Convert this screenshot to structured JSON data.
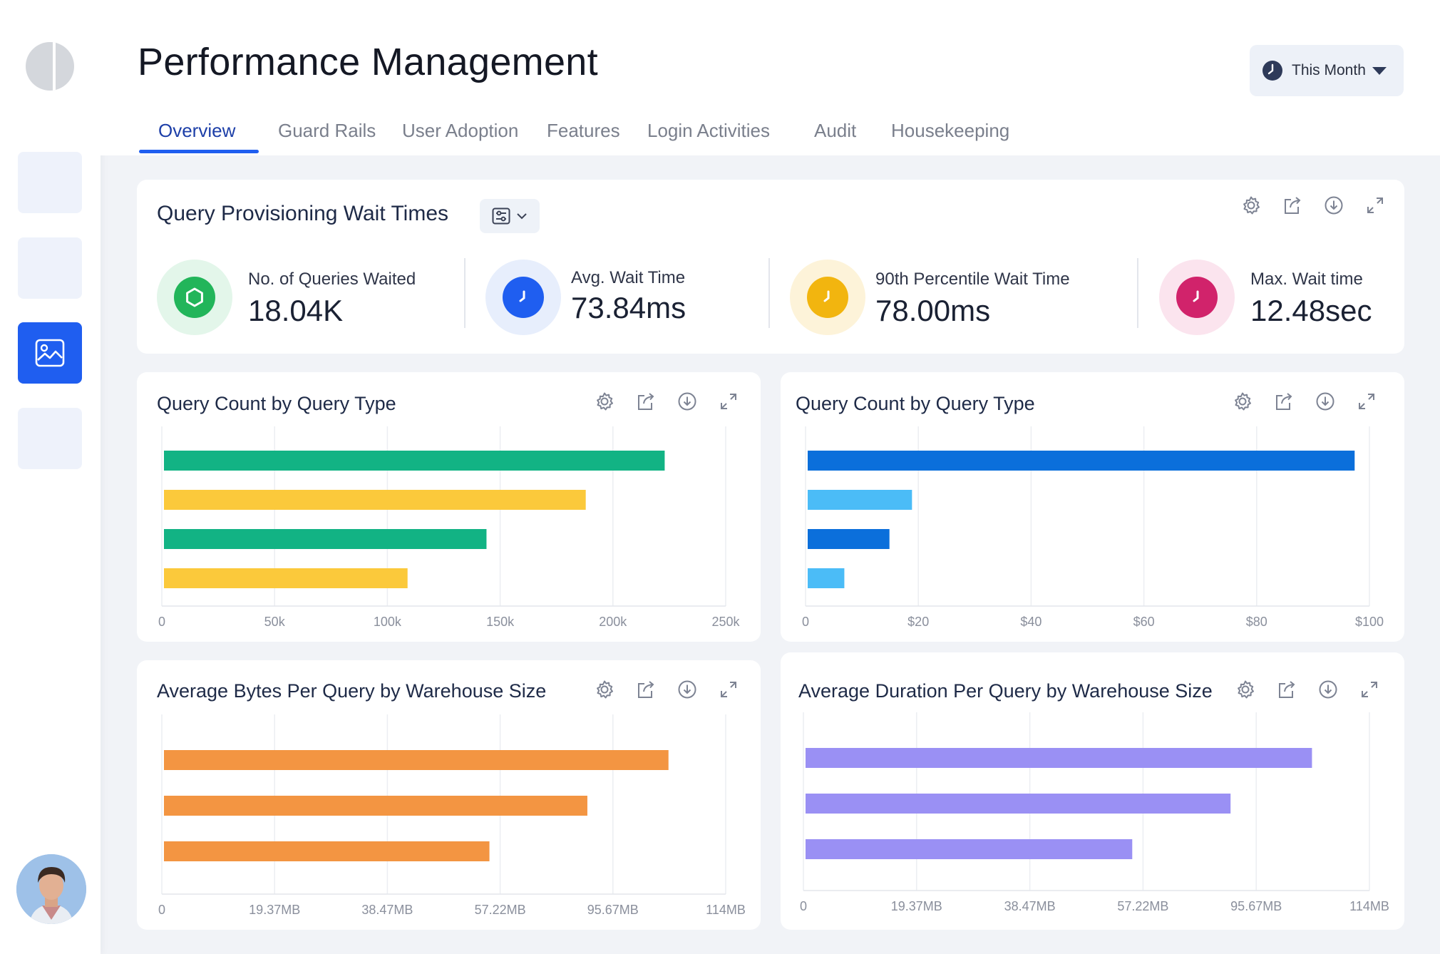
{
  "header": {
    "title": "Performance Management",
    "date_filter": "This Month"
  },
  "tabs": [
    {
      "label": "Overview",
      "active": true
    },
    {
      "label": "Guard Rails"
    },
    {
      "label": "User Adoption"
    },
    {
      "label": "Features"
    },
    {
      "label": "Login Activities"
    },
    {
      "label": "Audit"
    },
    {
      "label": "Housekeeping"
    }
  ],
  "sidebar": {
    "icons": [
      "app-logo",
      "nav-item-1",
      "nav-item-2",
      "nav-item-dashboard-image-icon",
      "nav-item-4",
      "user-avatar"
    ]
  },
  "card_tools": [
    "gear-icon",
    "share-icon",
    "download-icon",
    "expand-icon"
  ],
  "kpi_card": {
    "title": "Query Provisioning Wait Times",
    "items": [
      {
        "label": "No. of Queries Waited",
        "value": "18.04K",
        "icon": "hexagon-icon",
        "color": "#22b55a",
        "bg": "#e3f6ea"
      },
      {
        "label": "Avg. Wait Time",
        "value": "73.84ms",
        "icon": "clock-icon",
        "color": "#1f5ef0",
        "bg": "#e7eefc"
      },
      {
        "label": "90th Percentile Wait Time",
        "value": "78.00ms",
        "icon": "clock-icon",
        "color": "#f2b50f",
        "bg": "#fdf3d9"
      },
      {
        "label": "Max. Wait time",
        "value": "12.48sec",
        "icon": "clock-icon",
        "color": "#d1236b",
        "bg": "#fbe4ee"
      }
    ]
  },
  "charts": [
    {
      "title": "Query Count by Query Type",
      "chart_data": {
        "type": "bar",
        "orientation": "horizontal",
        "values": [
          222000,
          187000,
          143000,
          108000
        ],
        "colors": [
          "#12b384",
          "#fbc93b",
          "#12b384",
          "#fbc93b"
        ],
        "xlim": [
          0,
          250000
        ],
        "xticks": [
          "0",
          "50k",
          "100k",
          "150k",
          "200k",
          "250k"
        ],
        "grid": true
      }
    },
    {
      "title": "Query Count by Query Type",
      "chart_data": {
        "type": "bar",
        "orientation": "horizontal",
        "values": [
          97,
          18.5,
          14.5,
          6.5
        ],
        "colors": [
          "#0b6fdb",
          "#4bbcf7",
          "#0b6fdb",
          "#4bbcf7"
        ],
        "xlim": [
          0,
          100
        ],
        "xticks": [
          "0",
          "$20",
          "$40",
          "$60",
          "$80",
          "$100"
        ],
        "grid": true
      }
    },
    {
      "title": "Average Bytes Per Query by Warehouse Size",
      "chart_data": {
        "type": "bar",
        "orientation": "horizontal",
        "values": [
          102,
          85.6,
          65.8
        ],
        "colors": [
          "#f39542",
          "#f39542",
          "#f39542"
        ],
        "xlim": [
          0,
          114
        ],
        "xticks": [
          "0",
          "19.37MB",
          "38.47MB",
          "57.22MB",
          "95.67MB",
          "114MB"
        ],
        "grid": true
      }
    },
    {
      "title": "Average Duration Per Query by Warehouse Size",
      "chart_data": {
        "type": "bar",
        "orientation": "horizontal",
        "values": [
          102,
          85.6,
          65.8
        ],
        "colors": [
          "#9a90f4",
          "#9a90f4",
          "#9a90f4"
        ],
        "xlim": [
          0,
          114
        ],
        "xticks": [
          "0",
          "19.37MB",
          "38.47MB",
          "57.22MB",
          "95.67MB",
          "114MB"
        ],
        "grid": true
      }
    }
  ]
}
